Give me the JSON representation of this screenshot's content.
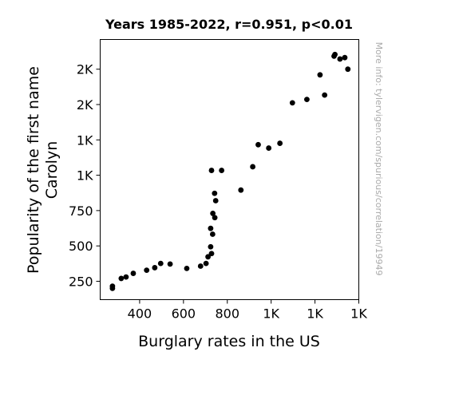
{
  "chart_data": {
    "type": "scatter",
    "title": "Years 1985-2022, r=0.951, p<0.01",
    "xlabel": "Burglary rates in the US",
    "ylabel_lines": [
      "Popularity of the first name",
      "Carolyn"
    ],
    "watermark": "More info: tylervigen.com/spurious/correlation/19949",
    "xlim": [
      220,
      1400
    ],
    "ylim": [
      120,
      1960
    ],
    "x_ticks": [
      {
        "value": 400,
        "label": "400"
      },
      {
        "value": 600,
        "label": "600"
      },
      {
        "value": 800,
        "label": "800"
      },
      {
        "value": 1000,
        "label": "1K"
      },
      {
        "value": 1200,
        "label": "1K"
      },
      {
        "value": 1400,
        "label": "1K"
      }
    ],
    "y_ticks": [
      {
        "value": 250,
        "label": "250"
      },
      {
        "value": 500,
        "label": "500"
      },
      {
        "value": 750,
        "label": "750"
      },
      {
        "value": 1000,
        "label": "1K"
      },
      {
        "value": 1250,
        "label": "1K"
      },
      {
        "value": 1500,
        "label": "2K"
      },
      {
        "value": 1750,
        "label": "2K"
      }
    ],
    "marker_color": "#000000",
    "points": [
      {
        "x": 276,
        "y": 200
      },
      {
        "x": 276,
        "y": 215
      },
      {
        "x": 316,
        "y": 270
      },
      {
        "x": 338,
        "y": 280
      },
      {
        "x": 371,
        "y": 306
      },
      {
        "x": 432,
        "y": 328
      },
      {
        "x": 469,
        "y": 346
      },
      {
        "x": 496,
        "y": 376
      },
      {
        "x": 539,
        "y": 372
      },
      {
        "x": 615,
        "y": 341
      },
      {
        "x": 678,
        "y": 357
      },
      {
        "x": 703,
        "y": 376
      },
      {
        "x": 712,
        "y": 423
      },
      {
        "x": 728,
        "y": 446
      },
      {
        "x": 724,
        "y": 494
      },
      {
        "x": 733,
        "y": 583
      },
      {
        "x": 724,
        "y": 624
      },
      {
        "x": 743,
        "y": 700
      },
      {
        "x": 734,
        "y": 730
      },
      {
        "x": 747,
        "y": 820
      },
      {
        "x": 742,
        "y": 872
      },
      {
        "x": 862,
        "y": 895
      },
      {
        "x": 728,
        "y": 1034
      },
      {
        "x": 774,
        "y": 1034
      },
      {
        "x": 916,
        "y": 1060
      },
      {
        "x": 941,
        "y": 1216
      },
      {
        "x": 989,
        "y": 1192
      },
      {
        "x": 1040,
        "y": 1226
      },
      {
        "x": 1097,
        "y": 1512
      },
      {
        "x": 1163,
        "y": 1536
      },
      {
        "x": 1223,
        "y": 1710
      },
      {
        "x": 1244,
        "y": 1567
      },
      {
        "x": 1287,
        "y": 1842
      },
      {
        "x": 1291,
        "y": 1854
      },
      {
        "x": 1314,
        "y": 1822
      },
      {
        "x": 1336,
        "y": 1832
      },
      {
        "x": 1350,
        "y": 1750
      }
    ]
  }
}
